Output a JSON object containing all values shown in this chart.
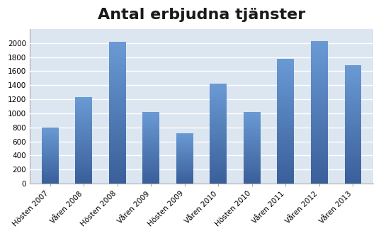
{
  "title": "Antal erbjudna tjänster",
  "categories": [
    "Hösten 2007",
    "Våren 2008",
    "Hösten 2008",
    "Våren 2009",
    "Hösten 2009",
    "Våren 2010",
    "Hösten 2010",
    "Våren 2011",
    "Våren 2012",
    "Våren 2013"
  ],
  "values": [
    800,
    1230,
    2020,
    1020,
    720,
    1420,
    1020,
    1780,
    2030,
    1690
  ],
  "bar_color_top": "#5B87C5",
  "bar_color_bottom": "#3A5F9A",
  "ylim": [
    0,
    2200
  ],
  "yticks": [
    0,
    200,
    400,
    600,
    800,
    1000,
    1200,
    1400,
    1600,
    1800,
    2000
  ],
  "plot_bg_color": "#dce6f1",
  "fig_bg_color": "#ffffff",
  "title_fontsize": 16,
  "tick_fontsize": 7.5,
  "grid_color": "#ffffff",
  "bar_width": 0.5
}
